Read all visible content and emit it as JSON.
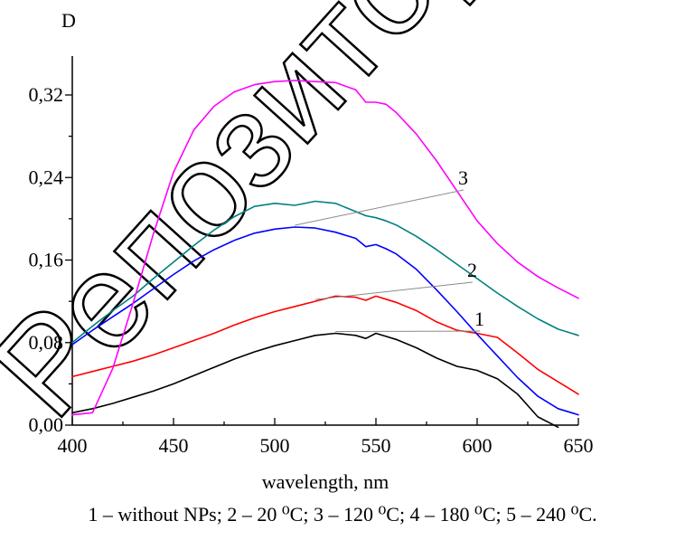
{
  "chart_data": {
    "type": "line",
    "title": "",
    "ylabel": "D",
    "xlabel": "wavelength, nm",
    "xlim": [
      400,
      650
    ],
    "ylim": [
      0.0,
      0.36
    ],
    "xticks": [
      400,
      450,
      500,
      550,
      600,
      650
    ],
    "xtick_labels": [
      "400",
      "450",
      "500",
      "550",
      "600",
      "650"
    ],
    "yticks": [
      0.0,
      0.08,
      0.16,
      0.24,
      0.32
    ],
    "ytick_labels": [
      "0,00",
      "0,08",
      "0,16",
      "0,24",
      "0,32"
    ],
    "grid": false,
    "legend": "none",
    "x": [
      400,
      410,
      420,
      430,
      440,
      450,
      460,
      470,
      480,
      490,
      500,
      510,
      520,
      530,
      540,
      545,
      550,
      555,
      560,
      570,
      580,
      590,
      600,
      610,
      620,
      630,
      640,
      650
    ],
    "series": [
      {
        "label": "1",
        "color": "#000000",
        "values": [
          0.012,
          0.016,
          0.021,
          0.027,
          0.033,
          0.04,
          0.048,
          0.056,
          0.064,
          0.071,
          0.077,
          0.082,
          0.087,
          0.089,
          0.087,
          0.084,
          0.089,
          0.086,
          0.083,
          0.075,
          0.065,
          0.057,
          0.053,
          0.045,
          0.03,
          0.008,
          -0.005,
          null
        ]
      },
      {
        "label": "2",
        "color": "#ff0000",
        "values": [
          0.047,
          0.052,
          0.057,
          0.062,
          0.068,
          0.075,
          0.082,
          0.089,
          0.097,
          0.104,
          0.11,
          0.115,
          0.12,
          0.125,
          0.124,
          0.121,
          0.125,
          0.122,
          0.119,
          0.111,
          0.1,
          0.092,
          0.089,
          0.085,
          0.07,
          0.054,
          0.042,
          0.03
        ]
      },
      {
        "label": "3",
        "color": "#0000ff",
        "values": [
          0.078,
          0.092,
          0.105,
          0.118,
          0.132,
          0.146,
          0.159,
          0.17,
          0.179,
          0.186,
          0.19,
          0.192,
          0.191,
          0.187,
          0.181,
          0.173,
          0.175,
          0.171,
          0.166,
          0.151,
          0.131,
          0.11,
          0.088,
          0.067,
          0.046,
          0.028,
          0.016,
          0.01
        ]
      },
      {
        "label": "4",
        "color": "#008080",
        "values": [
          0.08,
          0.096,
          0.111,
          0.125,
          0.142,
          0.158,
          0.174,
          0.189,
          0.202,
          0.212,
          0.215,
          0.213,
          0.217,
          0.215,
          0.207,
          0.203,
          0.201,
          0.198,
          0.194,
          0.183,
          0.17,
          0.156,
          0.142,
          0.128,
          0.115,
          0.103,
          0.093,
          0.087
        ]
      },
      {
        "label": "5",
        "color": "#ff00ff",
        "values": [
          0.01,
          0.012,
          0.055,
          0.118,
          0.185,
          0.245,
          0.286,
          0.309,
          0.323,
          0.33,
          0.333,
          0.334,
          0.333,
          0.332,
          0.325,
          0.313,
          0.313,
          0.311,
          0.303,
          0.282,
          0.256,
          0.227,
          0.198,
          0.176,
          0.158,
          0.144,
          0.133,
          0.123
        ]
      }
    ]
  },
  "caption": "1 – without NPs; 2 – 20 ⁰C; 3 – 120 ⁰C; 4 – 180 ⁰C; 5 – 240 ⁰C.",
  "watermark_text": "Репозиторий"
}
